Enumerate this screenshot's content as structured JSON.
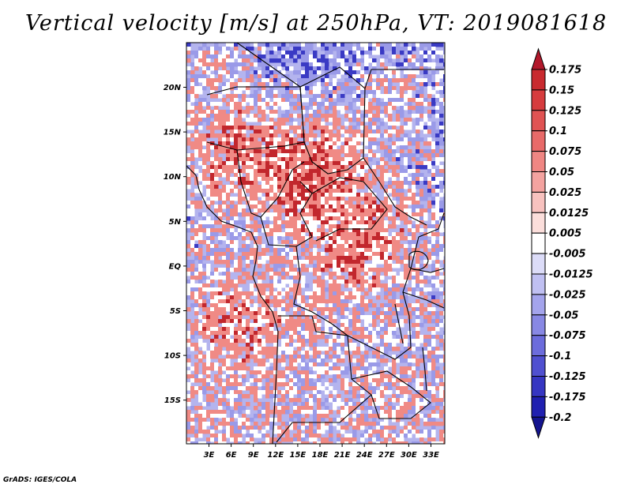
{
  "title": "Vertical velocity [m/s] at 250hPa, VT: 2019081618",
  "credit": "GrADS: IGES/COLA",
  "map": {
    "lon_labels": [
      "3E",
      "6E",
      "9E",
      "12E",
      "15E",
      "18E",
      "21E",
      "24E",
      "27E",
      "30E",
      "33E"
    ],
    "lat_labels": [
      "20N",
      "15N",
      "10N",
      "5N",
      "EQ",
      "5S",
      "10S",
      "15S"
    ]
  },
  "colorbar": {
    "orientation": "vertical",
    "placement": "right",
    "levels": [
      "0.175",
      "0.15",
      "0.125",
      "0.1",
      "0.075",
      "0.05",
      "0.025",
      "0.0125",
      "0.005",
      "-0.005",
      "-0.0125",
      "-0.025",
      "-0.05",
      "-0.075",
      "-0.1",
      "-0.125",
      "-0.175",
      "-0.2"
    ],
    "colors": [
      "#b2182b",
      "#c92a2f",
      "#d63c3e",
      "#e05353",
      "#e86a69",
      "#ef8683",
      "#f4a3a0",
      "#f8c2bf",
      "#fbdedb",
      "#ffffff",
      "#dcdcf8",
      "#c0c0f2",
      "#a4a4ec",
      "#8888e4",
      "#6c6cdc",
      "#5050d0",
      "#3636c2",
      "#2020b0",
      "#14148f"
    ]
  },
  "palette": {
    "strong_up": "#c2272d",
    "up": "#f08a85",
    "neutral": "#ffffff",
    "down": "#9a9ae8",
    "strong_down": "#3a3ac4"
  }
}
